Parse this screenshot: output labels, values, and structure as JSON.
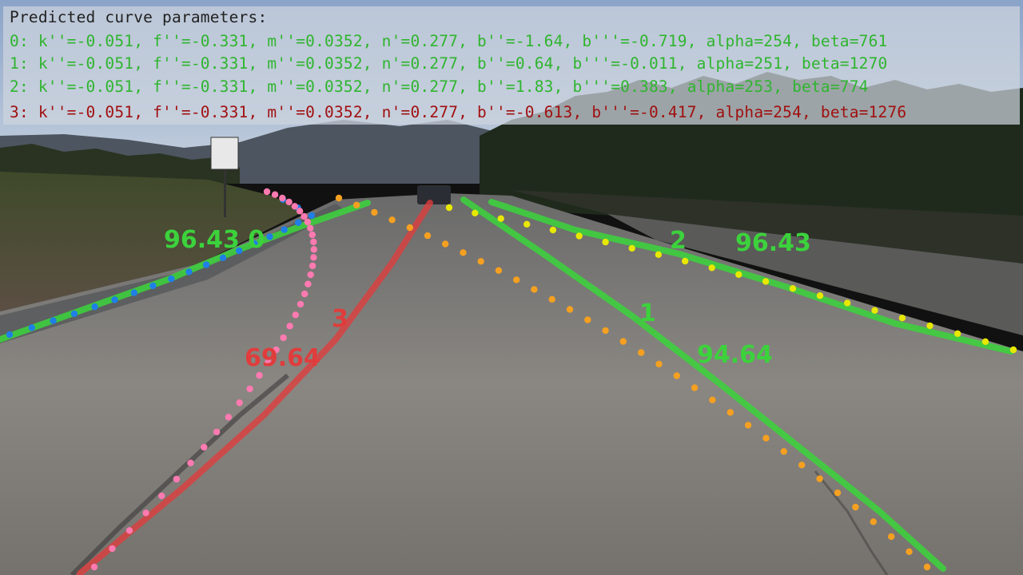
{
  "overlay": {
    "header": "Predicted curve parameters:",
    "rows": [
      {
        "text": "0: k''=-0.051, f''=-0.331, m''=0.0352, n'=0.277, b''=-1.64, b'''=-0.719, alpha=254, beta=761",
        "color": "#2fb52f"
      },
      {
        "text": "1: k''=-0.051, f''=-0.331, m''=0.0352, n'=0.277, b''=0.64, b'''=-0.011, alpha=251, beta=1270",
        "color": "#2fb52f"
      },
      {
        "text": "2: k''=-0.051, f''=-0.331, m''=0.0352, n'=0.277, b''=1.83, b'''=0.383, alpha=253, beta=774",
        "color": "#2fb52f"
      },
      {
        "text": "3: k''=-0.051, f''=-0.331, m''=0.0352, n'=0.277, b''=-0.613, b'''=-0.417, alpha=254, beta=1276",
        "color": "#a01010"
      }
    ]
  },
  "lanes": [
    {
      "id": "0",
      "score": "96.43",
      "color": "#3cd23c"
    },
    {
      "id": "1",
      "score": "94.64",
      "color": "#3cd23c"
    },
    {
      "id": "2",
      "score": "96.43",
      "color": "#3cd23c"
    },
    {
      "id": "3",
      "score": "69.64",
      "color": "#e03c3c"
    }
  ],
  "colors": {
    "header_text": "#222222",
    "sky": "#aebfd6",
    "road": "#7f7d79",
    "dots_lane0": "#1f7fe6",
    "dots_lane1": "#f5a020",
    "dots_lane2": "#e8e800",
    "dots_lane3": "#ff7ab0"
  }
}
